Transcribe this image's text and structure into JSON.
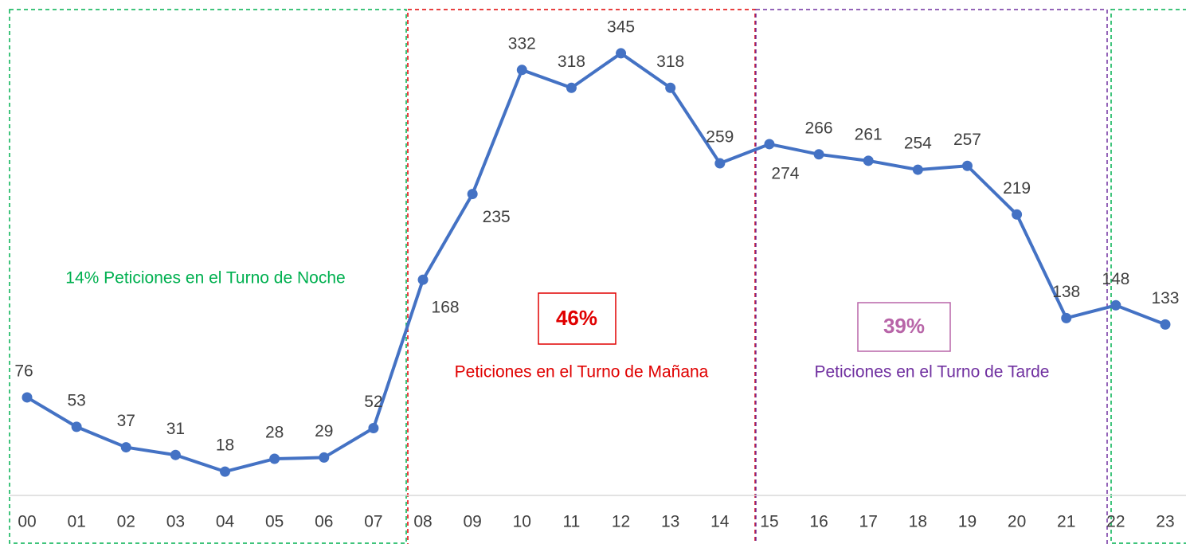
{
  "chart_data": {
    "type": "line",
    "categories": [
      "00",
      "01",
      "02",
      "03",
      "04",
      "05",
      "06",
      "07",
      "08",
      "09",
      "10",
      "11",
      "12",
      "13",
      "14",
      "15",
      "16",
      "17",
      "18",
      "19",
      "20",
      "21",
      "22",
      "23"
    ],
    "values": [
      76,
      53,
      37,
      31,
      18,
      28,
      29,
      52,
      168,
      235,
      332,
      318,
      345,
      318,
      259,
      274,
      266,
      261,
      254,
      257,
      219,
      138,
      148,
      133
    ],
    "color": "#4472c4",
    "annotations": {
      "night": "14% Peticiones en el Turno de Noche",
      "morning_pct": "46%",
      "morning": "Peticiones en el Turno de Mañana",
      "afternoon_pct": "39%",
      "afternoon": "Peticiones en el Turno de Tarde"
    }
  }
}
